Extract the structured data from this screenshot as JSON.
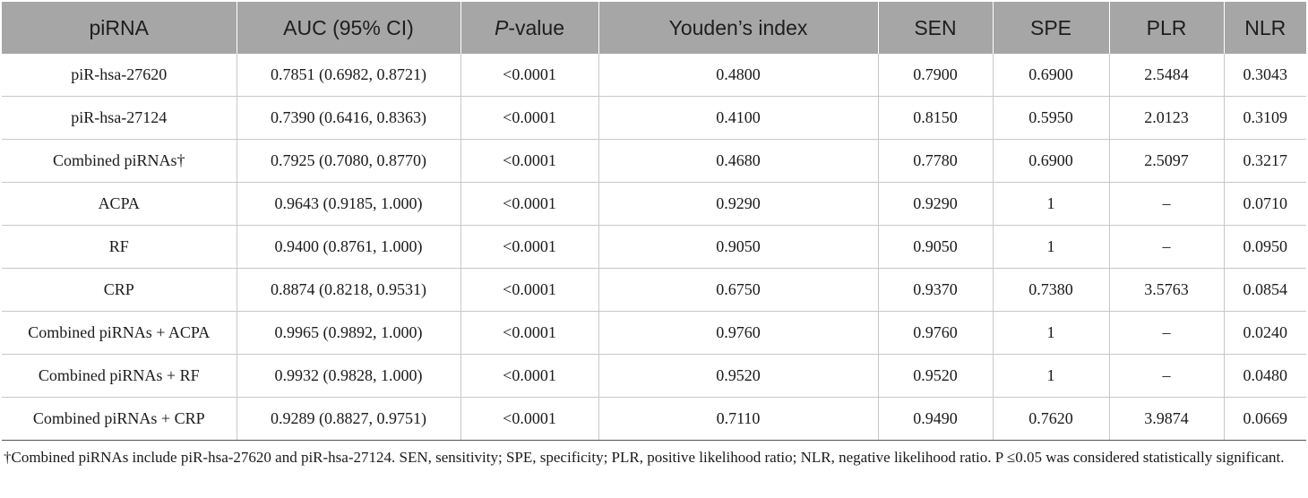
{
  "table": {
    "header": {
      "col1": "piRNA",
      "col2": "AUC (95% CI)",
      "col3_italic": "P",
      "col3_rest": "-value",
      "col4": "Youden’s index",
      "col5": "SEN",
      "col6": "SPE",
      "col7": "PLR",
      "col8": "NLR"
    },
    "rows": [
      [
        "piR-hsa-27620",
        "0.7851 (0.6982, 0.8721)",
        "<0.0001",
        "0.4800",
        "0.7900",
        "0.6900",
        "2.5484",
        "0.3043"
      ],
      [
        "piR-hsa-27124",
        "0.7390 (0.6416, 0.8363)",
        "<0.0001",
        "0.4100",
        "0.8150",
        "0.5950",
        "2.0123",
        "0.3109"
      ],
      [
        "Combined piRNAs†",
        "0.7925 (0.7080, 0.8770)",
        "<0.0001",
        "0.4680",
        "0.7780",
        "0.6900",
        "2.5097",
        "0.3217"
      ],
      [
        "ACPA",
        "0.9643 (0.9185, 1.000)",
        "<0.0001",
        "0.9290",
        "0.9290",
        "1",
        "–",
        "0.0710"
      ],
      [
        "RF",
        "0.9400 (0.8761, 1.000)",
        "<0.0001",
        "0.9050",
        "0.9050",
        "1",
        "–",
        "0.0950"
      ],
      [
        "CRP",
        "0.8874 (0.8218, 0.9531)",
        "<0.0001",
        "0.6750",
        "0.9370",
        "0.7380",
        "3.5763",
        "0.0854"
      ],
      [
        "Combined piRNAs + ACPA",
        "0.9965 (0.9892, 1.000)",
        "<0.0001",
        "0.9760",
        "0.9760",
        "1",
        "–",
        "0.0240"
      ],
      [
        "Combined piRNAs + RF",
        "0.9932 (0.9828, 1.000)",
        "<0.0001",
        "0.9520",
        "0.9520",
        "1",
        "–",
        "0.0480"
      ],
      [
        "Combined piRNAs + CRP",
        "0.9289 (0.8827, 0.9751)",
        "<0.0001",
        "0.7110",
        "0.9490",
        "0.7620",
        "3.9874",
        "0.0669"
      ]
    ]
  },
  "footnote": "†Combined piRNAs include piR-hsa-27620 and piR-hsa-27124. SEN, sensitivity; SPE, specificity; PLR, positive likelihood ratio; NLR, negative likelihood ratio. P ≤0.05 was considered statistically significant."
}
